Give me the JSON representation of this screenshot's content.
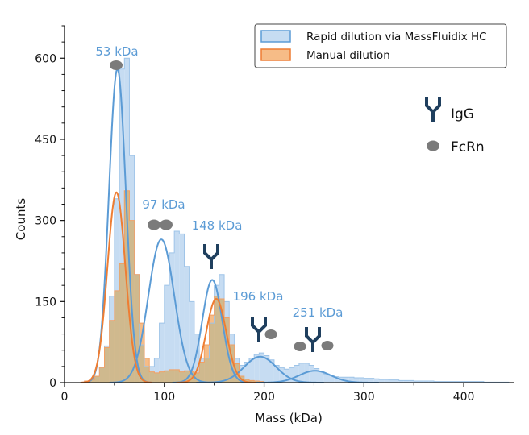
{
  "chart_data": {
    "type": "histogram",
    "xlabel": "Mass (kDa)",
    "ylabel": "Counts",
    "xlim": [
      0,
      450
    ],
    "ylim": [
      0,
      660
    ],
    "x_ticks": [
      0,
      100,
      200,
      300,
      400
    ],
    "y_ticks": [
      0,
      150,
      300,
      450,
      600
    ],
    "grid": false,
    "legend_position": "top-right",
    "colors": {
      "blue_line": "#5b9bd5",
      "blue_fill": "#c6dcf2",
      "orange_line": "#ee7d33",
      "orange_fill": "#f6bc87",
      "overlap_fill": "#cfb98e",
      "icon": "#1f3f5e",
      "fcrn": "#7b7b7b"
    },
    "series": [
      {
        "name": "Rapid dilution via MassFluidix HC",
        "color": "#5b9bd5",
        "fill": "#c6dcf2",
        "bin_start": 20,
        "bin_width": 5,
        "histogram": [
          3,
          6,
          12,
          28,
          68,
          160,
          340,
          580,
          600,
          420,
          200,
          70,
          30,
          30,
          45,
          110,
          180,
          240,
          280,
          275,
          215,
          150,
          90,
          45,
          45,
          110,
          180,
          200,
          150,
          90,
          45,
          32,
          38,
          45,
          52,
          55,
          50,
          42,
          32,
          28,
          25,
          28,
          32,
          36,
          36,
          32,
          26,
          20,
          16,
          13,
          11,
          10,
          10,
          10,
          9,
          9,
          8,
          8,
          7,
          6,
          6,
          5,
          5,
          4,
          4,
          4,
          3,
          3,
          3,
          3,
          2,
          2,
          2,
          2,
          2,
          2,
          2,
          2,
          2,
          2,
          1,
          1,
          1,
          1,
          1
        ],
        "fits": [
          {
            "center": 53,
            "sigma": 8.5,
            "amplitude": 580
          },
          {
            "center": 97,
            "sigma": 13,
            "amplitude": 265
          },
          {
            "center": 148,
            "sigma": 10,
            "amplitude": 190
          },
          {
            "center": 196,
            "sigma": 16,
            "amplitude": 48
          },
          {
            "center": 251,
            "sigma": 16,
            "amplitude": 22
          }
        ]
      },
      {
        "name": "Manual dilution",
        "color": "#ee7d33",
        "fill": "#f6bc87",
        "bin_start": 20,
        "bin_width": 5,
        "histogram": [
          3,
          5,
          12,
          28,
          65,
          115,
          170,
          220,
          355,
          300,
          200,
          110,
          45,
          20,
          18,
          20,
          22,
          24,
          24,
          20,
          22,
          20,
          18,
          38,
          70,
          125,
          160,
          155,
          120,
          70,
          35,
          12,
          6,
          4,
          3,
          2
        ],
        "fits": [
          {
            "center": 52,
            "sigma": 9,
            "amplitude": 352
          },
          {
            "center": 152,
            "sigma": 10,
            "amplitude": 155
          }
        ]
      }
    ],
    "annotations": [
      {
        "text": "53 kDa",
        "x": 53,
        "y": 650,
        "icon": "fcrn-1"
      },
      {
        "text": "97 kDa",
        "x": 97,
        "y": 350,
        "icon": "fcrn-2"
      },
      {
        "text": "148 kDa",
        "x": 148,
        "y": 303,
        "icon": "igg"
      },
      {
        "text": "196 kDa",
        "x": 196,
        "y": 163,
        "icon": "igg-fcrn-1"
      },
      {
        "text": "251 kDa",
        "x": 251,
        "y": 125,
        "icon": "igg-fcrn-2"
      }
    ],
    "key": [
      {
        "icon": "igg-icon",
        "label": "IgG"
      },
      {
        "icon": "fcrn-icon",
        "label": "FcRn"
      }
    ]
  }
}
